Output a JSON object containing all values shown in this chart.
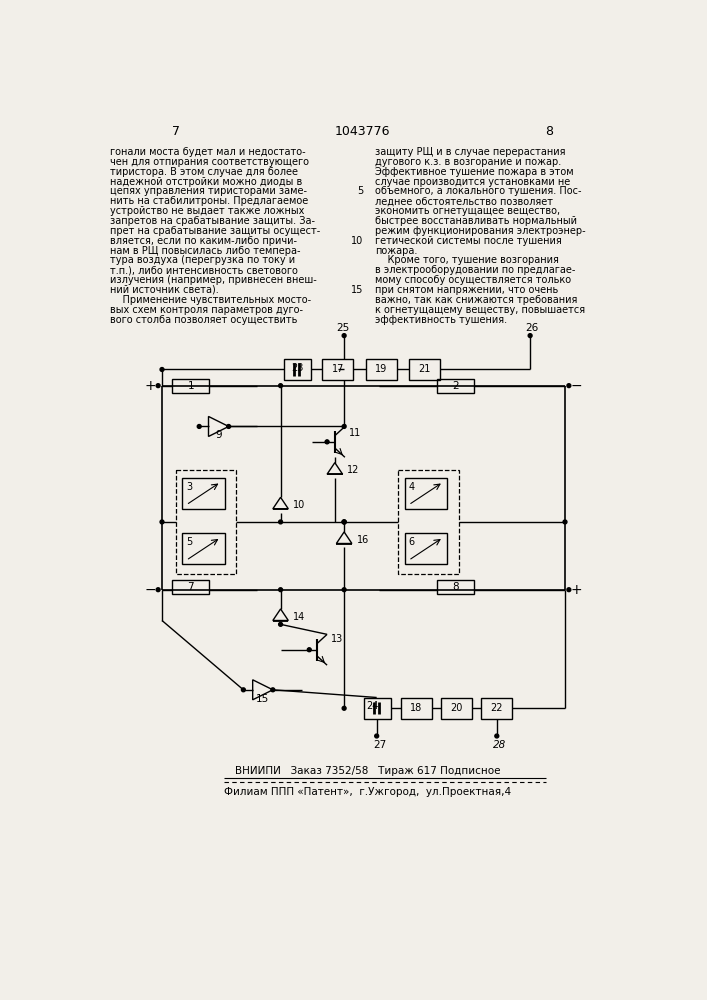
{
  "page_num_left": "7",
  "page_num_center": "1043776",
  "page_num_right": "8",
  "col1_lines": [
    "гонали моста будет мал и недостато-",
    "чен для отпирания соответствующего",
    "тиристора. В этом случае для более",
    "надежной отстройки можно диоды в",
    "цепях управления тиристорами заме-",
    "нить на стабилитроны. Предлагаемое",
    "устройство не выдает также ложных",
    "запретов на срабатывание защиты. За-",
    "прет на срабатывание защиты осущест-",
    "вляется, если по каким-либо причи-",
    "нам в РЩ повысилась либо темпера-",
    "тура воздуха (перегрузка по току и",
    "т.п.), либо интенсивность светового",
    "излучения (например, привнесен внеш-",
    "ний источник света).",
    "    Применение чувствительных мосто-",
    "вых схем контроля параметров дуго-",
    "вого столба позволяет осуществить"
  ],
  "col2_lines": [
    "защиту РЩ и в случае перерастания",
    "дугового к.з. в возгорание и пожар.",
    "Эффективное тушение пожара в этом",
    "случае производится установками не",
    "объемного, а локального тушения. Пос-",
    "леднее обстоятельство позволяет",
    "экономить огнетущащее вещество,",
    "быстрее восстанавливать нормальный",
    "режим функционирования электроэнер-",
    "гетической системы после тушения",
    "пожара.",
    "    Кроме того, тушение возгорания",
    "в электрооборудовании по предлагае-",
    "мому способу осуществляется только",
    "при снятом напряжении, что очень",
    "важно, так как снижаются требования",
    "к огнетущащему веществу, повышается",
    "эффективность тушения."
  ],
  "line_numbers_rows": [
    5,
    10,
    15
  ],
  "bottom_text1": "ВНИИПИ   Заказ 7352/58   Тираж 617 Подписное",
  "bottom_text2": "Филиам ППП «Патент»,  г.Ужгород,  ул.Проектная,4",
  "bg_color": "#f2efe9"
}
